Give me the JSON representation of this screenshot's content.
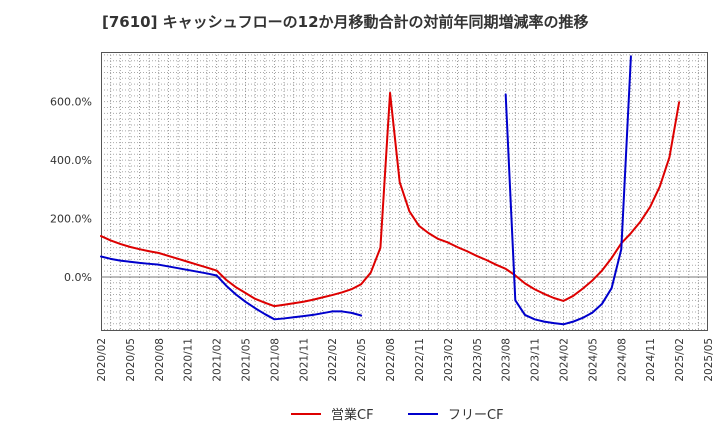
{
  "chart_data": {
    "type": "line",
    "title": "[7610]  キャッシュフローの12か月移動合計の対前年同期増減率の推移",
    "xlabel": "",
    "ylabel": "",
    "ylim": [
      -185,
      770
    ],
    "xlim": [
      "2020-02",
      "2025-05"
    ],
    "y_ticks": [
      {
        "value": 600,
        "label": "600.0%"
      },
      {
        "value": 400,
        "label": "400.0%"
      },
      {
        "value": 200,
        "label": "200.0%"
      },
      {
        "value": 0,
        "label": "0.0%"
      }
    ],
    "x_ticks": [
      "2020/02",
      "2020/05",
      "2020/08",
      "2020/11",
      "2021/02",
      "2021/05",
      "2021/08",
      "2021/11",
      "2022/02",
      "2022/05",
      "2022/08",
      "2022/11",
      "2023/02",
      "2023/05",
      "2023/08",
      "2023/11",
      "2024/02",
      "2024/05",
      "2024/08",
      "2024/11",
      "2025/02",
      "2025/05"
    ],
    "grid": true,
    "legend_position": "bottom",
    "series": [
      {
        "name": "営業CF",
        "color": "#dd0000",
        "points": [
          [
            "2020-02",
            140
          ],
          [
            "2020-03",
            125
          ],
          [
            "2020-04",
            113
          ],
          [
            "2020-05",
            103
          ],
          [
            "2020-06",
            95
          ],
          [
            "2020-07",
            88
          ],
          [
            "2020-08",
            82
          ],
          [
            "2020-09",
            72
          ],
          [
            "2020-10",
            62
          ],
          [
            "2020-11",
            52
          ],
          [
            "2020-12",
            42
          ],
          [
            "2021-01",
            32
          ],
          [
            "2021-02",
            22
          ],
          [
            "2021-03",
            -10
          ],
          [
            "2021-04",
            -35
          ],
          [
            "2021-05",
            -55
          ],
          [
            "2021-06",
            -75
          ],
          [
            "2021-07",
            -88
          ],
          [
            "2021-08",
            -100
          ],
          [
            "2021-09",
            -95
          ],
          [
            "2021-10",
            -90
          ],
          [
            "2021-11",
            -85
          ],
          [
            "2021-12",
            -78
          ],
          [
            "2022-01",
            -70
          ],
          [
            "2022-02",
            -62
          ],
          [
            "2022-03",
            -53
          ],
          [
            "2022-04",
            -42
          ],
          [
            "2022-05",
            -25
          ],
          [
            "2022-06",
            15
          ],
          [
            "2022-07",
            100
          ],
          [
            "2022-08",
            630
          ],
          [
            "2022-09",
            325
          ],
          [
            "2022-10",
            225
          ],
          [
            "2022-11",
            175
          ],
          [
            "2022-12",
            150
          ],
          [
            "2023-01",
            130
          ],
          [
            "2023-02",
            118
          ],
          [
            "2023-03",
            102
          ],
          [
            "2023-04",
            88
          ],
          [
            "2023-05",
            72
          ],
          [
            "2023-06",
            58
          ],
          [
            "2023-07",
            42
          ],
          [
            "2023-08",
            28
          ],
          [
            "2023-09",
            5
          ],
          [
            "2023-10",
            -22
          ],
          [
            "2023-11",
            -42
          ],
          [
            "2023-12",
            -58
          ],
          [
            "2024-01",
            -72
          ],
          [
            "2024-02",
            -82
          ],
          [
            "2024-03",
            -65
          ],
          [
            "2024-04",
            -40
          ],
          [
            "2024-05",
            -12
          ],
          [
            "2024-06",
            22
          ],
          [
            "2024-07",
            65
          ],
          [
            "2024-08",
            115
          ],
          [
            "2024-09",
            150
          ],
          [
            "2024-10",
            190
          ],
          [
            "2024-11",
            240
          ],
          [
            "2024-12",
            310
          ],
          [
            "2025-01",
            410
          ],
          [
            "2025-02",
            598
          ]
        ]
      },
      {
        "name": "フリーCF",
        "color": "#0000cc",
        "points": [
          [
            "2020-02",
            70
          ],
          [
            "2020-03",
            62
          ],
          [
            "2020-04",
            56
          ],
          [
            "2020-05",
            52
          ],
          [
            "2020-06",
            48
          ],
          [
            "2020-07",
            45
          ],
          [
            "2020-08",
            42
          ],
          [
            "2020-09",
            36
          ],
          [
            "2020-10",
            30
          ],
          [
            "2020-11",
            24
          ],
          [
            "2020-12",
            18
          ],
          [
            "2021-01",
            12
          ],
          [
            "2021-02",
            5
          ],
          [
            "2021-03",
            -30
          ],
          [
            "2021-04",
            -60
          ],
          [
            "2021-05",
            -85
          ],
          [
            "2021-06",
            -107
          ],
          [
            "2021-07",
            -127
          ],
          [
            "2021-08",
            -145
          ],
          [
            "2021-09",
            -142
          ],
          [
            "2021-10",
            -138
          ],
          [
            "2021-11",
            -134
          ],
          [
            "2021-12",
            -130
          ],
          [
            "2022-01",
            -124
          ],
          [
            "2022-02",
            -118
          ],
          [
            "2022-03",
            -118
          ],
          [
            "2022-04",
            -123
          ],
          [
            "2022-05",
            -132
          ],
          null,
          [
            "2023-08",
            625
          ],
          [
            "2023-09",
            -80
          ],
          [
            "2023-10",
            -130
          ],
          [
            "2023-11",
            -145
          ],
          [
            "2023-12",
            -153
          ],
          [
            "2024-01",
            -158
          ],
          [
            "2024-02",
            -162
          ],
          [
            "2024-03",
            -153
          ],
          [
            "2024-04",
            -140
          ],
          [
            "2024-05",
            -122
          ],
          [
            "2024-06",
            -92
          ],
          [
            "2024-07",
            -38
          ],
          [
            "2024-08",
            95
          ],
          [
            "2024-09",
            755
          ]
        ]
      }
    ]
  }
}
